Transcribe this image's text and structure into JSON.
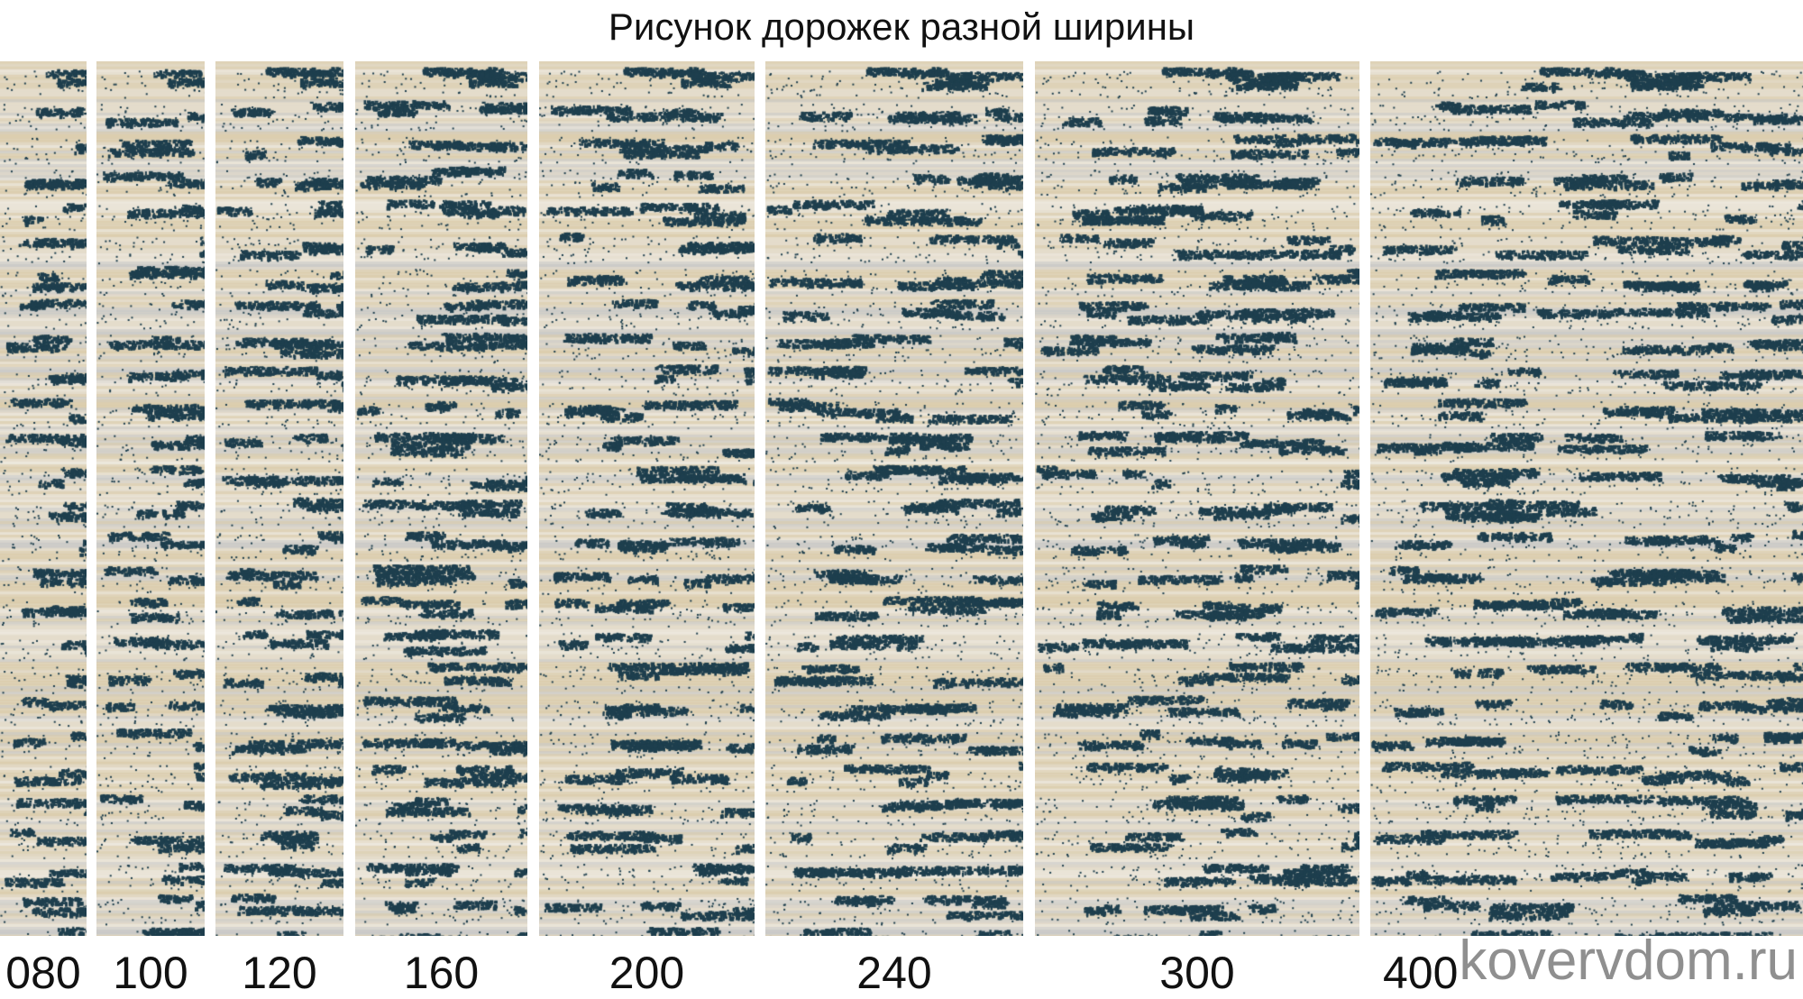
{
  "title": "Рисунок дорожек разной ширины",
  "colors": {
    "base": "#e4dccb",
    "beige": "#d9c9a6",
    "grey": "#c3c6c8",
    "light": "#efece4",
    "blotch": "#1e3f4e"
  },
  "runners": [
    {
      "width_label": "080"
    },
    {
      "width_label": "100"
    },
    {
      "width_label": "120"
    },
    {
      "width_label": "160"
    },
    {
      "width_label": "200"
    },
    {
      "width_label": "240"
    },
    {
      "width_label": "300"
    },
    {
      "width_label": "400"
    }
  ],
  "watermark": "kovervdom.ru"
}
